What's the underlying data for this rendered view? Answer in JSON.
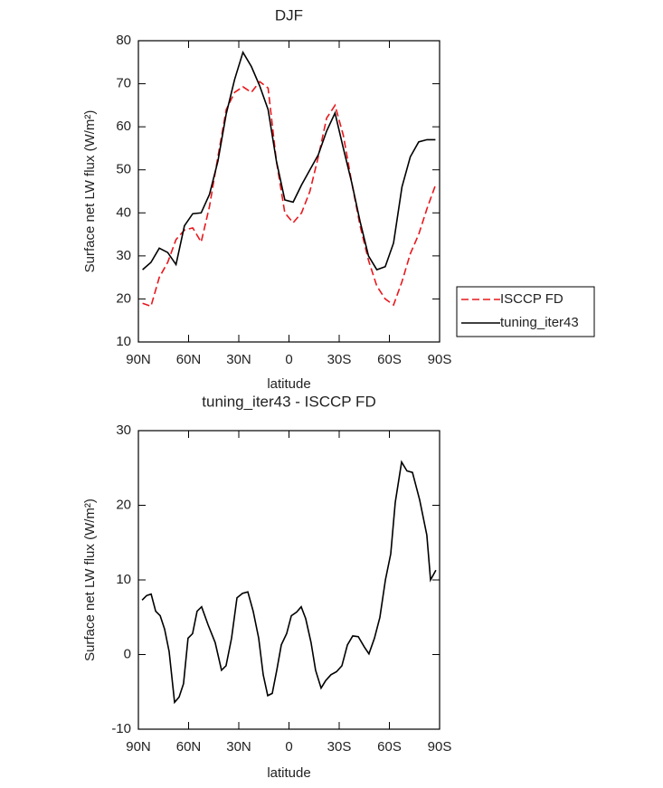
{
  "chart_data": [
    {
      "type": "line",
      "title": "DJF",
      "xlabel": "latitude",
      "ylabel": "Surface net LW flux (W/m²)",
      "x": [
        87.5,
        82.5,
        77.5,
        72.5,
        67.5,
        62.5,
        57.5,
        52.5,
        47.5,
        42.5,
        37.5,
        32.5,
        27.5,
        22.5,
        17.5,
        12.5,
        7.5,
        2.5,
        -2.5,
        -7.5,
        -12.5,
        -17.5,
        -22.5,
        -27.5,
        -32.5,
        -37.5,
        -42.5,
        -47.5,
        -52.5,
        -57.5,
        -62.5,
        -67.5,
        -72.5,
        -77.5,
        -82.5,
        -87.5
      ],
      "series": [
        {
          "name": "ISCCP FD",
          "color": "#e8181d",
          "dashed": true,
          "values": [
            19,
            18.3,
            25,
            28.5,
            33.8,
            36,
            36.5,
            33.2,
            41.5,
            53,
            64,
            68,
            69.3,
            68,
            70.5,
            69,
            52,
            40,
            37.7,
            40,
            45,
            53,
            62,
            65,
            58,
            47,
            37,
            29,
            23,
            20,
            18.6,
            24,
            30.5,
            35,
            41,
            46.4
          ]
        },
        {
          "name": "tuning_iter43",
          "color": "#000000",
          "dashed": false,
          "values": [
            26.8,
            28.5,
            31.8,
            30.8,
            28,
            37,
            39.8,
            40,
            44.3,
            52,
            63,
            71,
            77.3,
            74,
            69.5,
            64,
            52,
            43,
            42.5,
            46.5,
            50,
            53.5,
            59,
            63.2,
            55,
            47,
            38,
            30,
            26.8,
            27.5,
            33,
            46,
            53,
            56.5,
            57,
            57
          ]
        }
      ],
      "xlim": [
        90,
        -90
      ],
      "xticks": [
        {
          "value": 90,
          "label": "90N"
        },
        {
          "value": 60,
          "label": "60N"
        },
        {
          "value": 30,
          "label": "30N"
        },
        0,
        {
          "value": -30,
          "label": "30S"
        },
        {
          "value": -60,
          "label": "60S"
        },
        {
          "value": -90,
          "label": "90S"
        }
      ],
      "ylim": [
        10,
        80
      ],
      "yticks": [
        10,
        20,
        30,
        40,
        50,
        60,
        70,
        80
      ],
      "legend": "right"
    },
    {
      "type": "line",
      "title": "tuning_iter43 - ISCCP FD",
      "xlabel": "latitude",
      "ylabel": "Surface net LW flux (W/m²)",
      "x": [
        87.8,
        85.1,
        82.4,
        79.7,
        77.0,
        74.3,
        71.6,
        68.4,
        65.7,
        63.0,
        60.3,
        57.6,
        54.9,
        52.2,
        48.4,
        44.1,
        40.3,
        37.6,
        34.3,
        31.1,
        27.8,
        24.6,
        21.4,
        18.1,
        15.4,
        12.7,
        10.0,
        7.3,
        4.6,
        1.4,
        -1.4,
        -4.6,
        -7.3,
        -10.0,
        -13.2,
        -15.9,
        -19.2,
        -21.9,
        -25.1,
        -28.4,
        -31.6,
        -34.9,
        -38.1,
        -41.4,
        -45.1,
        -47.8,
        -51.1,
        -54.3,
        -57.6,
        -60.8,
        -63.5,
        -67.3,
        -70.5,
        -73.8,
        -78.1,
        -82.4,
        -84.6,
        -87.8
      ],
      "values": [
        7.3,
        7.9,
        8.1,
        5.8,
        5.2,
        3.4,
        0.4,
        -6.4,
        -5.7,
        -3.9,
        2.2,
        2.8,
        5.8,
        6.4,
        4,
        1.6,
        -2.1,
        -1.5,
        2.2,
        7.6,
        8.2,
        8.4,
        5.8,
        2.2,
        -2.7,
        -5.5,
        -5.2,
        -2.1,
        1.3,
        2.8,
        5.2,
        5.7,
        6.4,
        4.8,
        1.6,
        -2.1,
        -4.5,
        -3.5,
        -2.7,
        -2.3,
        -1.5,
        1.3,
        2.5,
        2.4,
        1,
        0.1,
        2.2,
        5,
        10,
        13.5,
        20.4,
        25.8,
        24.6,
        24.4,
        20.7,
        16,
        10,
        11.3
      ],
      "color": "#000000",
      "xlim": [
        90,
        -90
      ],
      "xticks": [
        {
          "value": 90,
          "label": "90N"
        },
        {
          "value": 60,
          "label": "60N"
        },
        {
          "value": 30,
          "label": "30N"
        },
        0,
        {
          "value": -30,
          "label": "30S"
        },
        {
          "value": -60,
          "label": "60S"
        },
        {
          "value": -90,
          "label": "90S"
        }
      ],
      "ylim": [
        -10,
        30
      ],
      "yticks": [
        -10,
        0,
        10,
        20,
        30
      ]
    }
  ]
}
